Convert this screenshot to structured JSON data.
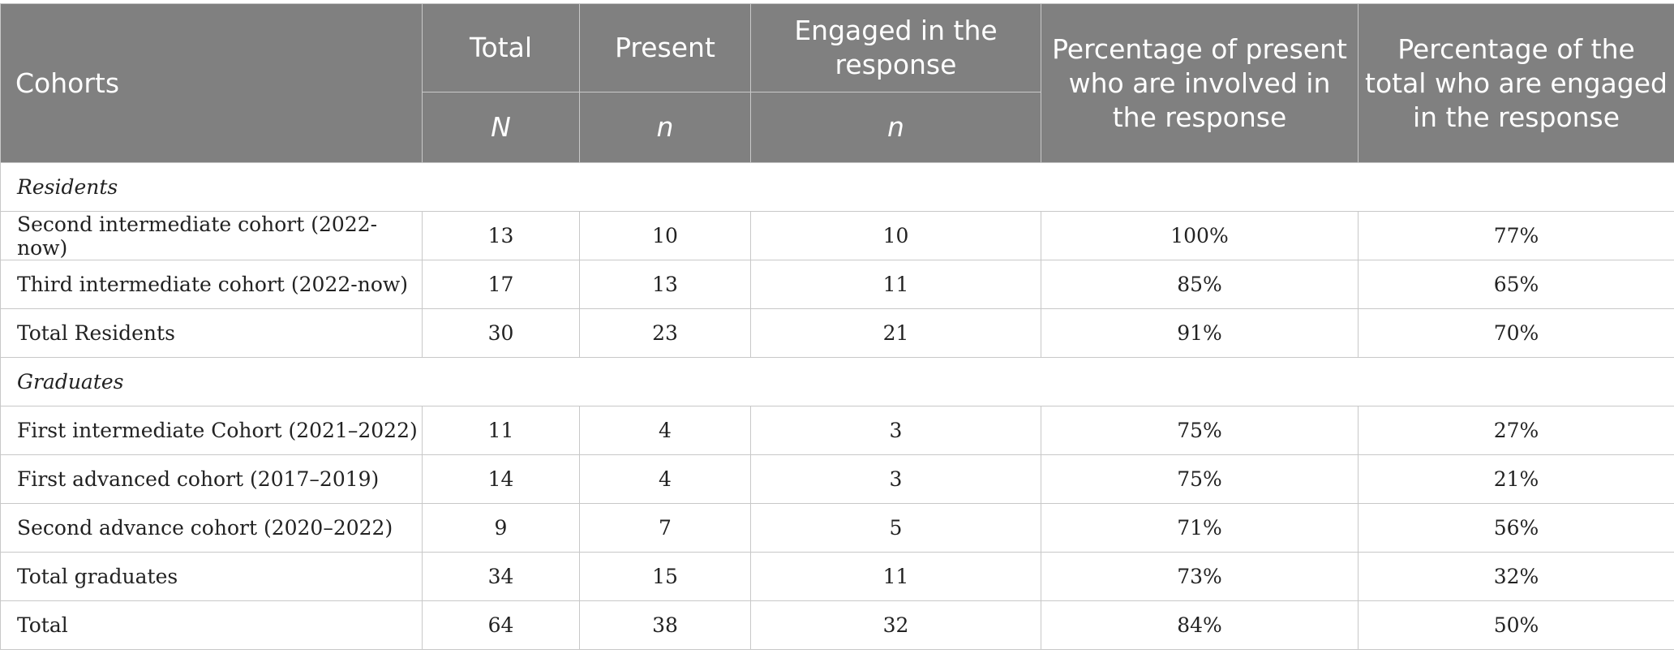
{
  "table": {
    "headers": {
      "cohorts": "Cohorts",
      "total": "Total",
      "present": "Present",
      "engaged": "Engaged in the response",
      "pct_present": "Percentage of present who are involved in the response",
      "pct_total": "Percentage of the total who are engaged in the response",
      "sym_total": "N",
      "sym_present": "n",
      "sym_engaged": "n"
    },
    "sections": [
      {
        "title": "Residents",
        "rows": [
          {
            "cohort": "Second intermediate cohort (2022-now)",
            "total": "13",
            "present": "10",
            "engaged": "10",
            "pct_present": "100%",
            "pct_total": "77%"
          },
          {
            "cohort": "Third intermediate cohort (2022-now)",
            "total": "17",
            "present": "13",
            "engaged": "11",
            "pct_present": "85%",
            "pct_total": "65%"
          },
          {
            "cohort": "Total Residents",
            "total": "30",
            "present": "23",
            "engaged": "21",
            "pct_present": "91%",
            "pct_total": "70%"
          }
        ]
      },
      {
        "title": "Graduates",
        "rows": [
          {
            "cohort": "First intermediate Cohort (2021–2022)",
            "total": "11",
            "present": "4",
            "engaged": "3",
            "pct_present": "75%",
            "pct_total": "27%"
          },
          {
            "cohort": "First advanced cohort (2017–2019)",
            "total": "14",
            "present": "4",
            "engaged": "3",
            "pct_present": "75%",
            "pct_total": "21%"
          },
          {
            "cohort": "Second advance cohort (2020–2022)",
            "total": "9",
            "present": "7",
            "engaged": "5",
            "pct_present": "71%",
            "pct_total": "56%"
          },
          {
            "cohort": "Total graduates",
            "total": "34",
            "present": "15",
            "engaged": "11",
            "pct_present": "73%",
            "pct_total": "32%"
          }
        ]
      }
    ],
    "grand_total": {
      "cohort": "Total",
      "total": "64",
      "present": "38",
      "engaged": "32",
      "pct_present": "84%",
      "pct_total": "50%"
    }
  }
}
